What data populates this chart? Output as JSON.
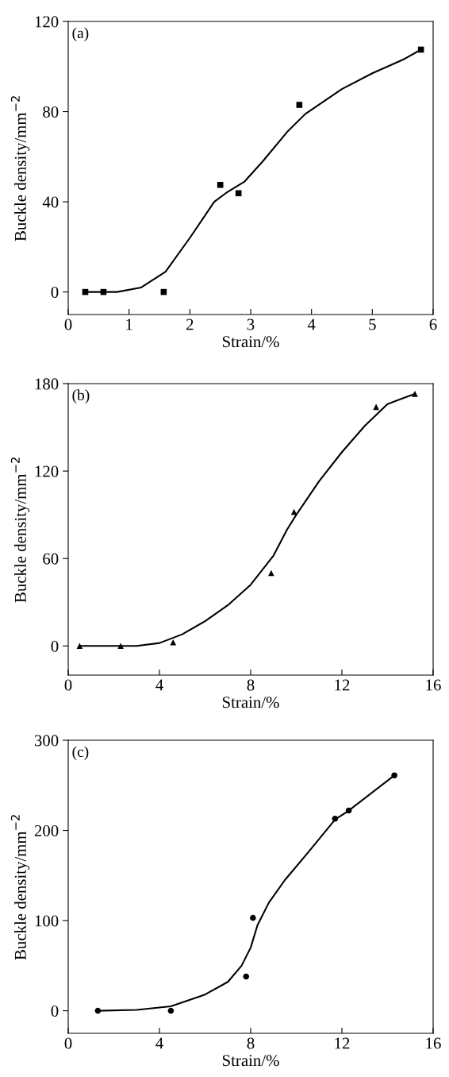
{
  "chart_data": [
    {
      "type": "scatter",
      "xlabel": "Strain/%",
      "ylabel": "Buckle density/mm$^{−2}$",
      "annotations": [
        "(a)"
      ],
      "marker": "square",
      "xlim": [
        0,
        6
      ],
      "ylim": [
        -10,
        120
      ],
      "xticks": [
        0,
        1,
        2,
        3,
        4,
        5,
        6
      ],
      "yticks": [
        0,
        40,
        80,
        120
      ],
      "grid": false,
      "legend": false,
      "series": [
        {
          "color": "#000000",
          "x": [
            0.28,
            0.58,
            1.57,
            2.5,
            2.8,
            3.8,
            5.8
          ],
          "values": [
            0,
            0,
            0,
            47.5,
            43.8,
            83,
            107.5
          ]
        },
        {
          "type": "line",
          "color": "#000000",
          "marker": "none",
          "x": [
            0.3,
            0.8,
            1.2,
            1.6,
            2.0,
            2.4,
            2.6,
            2.9,
            3.2,
            3.6,
            3.9,
            4.5,
            5.0,
            5.5,
            5.8
          ],
          "values": [
            0,
            0,
            2,
            9,
            24,
            40,
            44,
            49,
            58,
            71,
            79,
            90,
            97,
            103,
            107.5
          ]
        }
      ]
    },
    {
      "type": "scatter",
      "xlabel": "Strain/%",
      "ylabel": "Buckle density/mm$^{−2}$",
      "annotations": [
        "(b)"
      ],
      "marker": "triangle",
      "xlim": [
        0,
        16
      ],
      "ylim": [
        -20,
        180
      ],
      "xticks": [
        0,
        4,
        8,
        12,
        16
      ],
      "yticks": [
        0,
        60,
        120,
        180
      ],
      "grid": false,
      "legend": false,
      "series": [
        {
          "color": "#000000",
          "x": [
            0.5,
            2.3,
            4.6,
            8.9,
            9.9,
            13.5,
            15.2
          ],
          "values": [
            0,
            0,
            2.5,
            50,
            92,
            164,
            173
          ]
        },
        {
          "type": "line",
          "color": "#000000",
          "marker": "none",
          "x": [
            0.5,
            3,
            4,
            5,
            6,
            7,
            8,
            9,
            9.6,
            10,
            11,
            12,
            13,
            14,
            15.2
          ],
          "values": [
            0,
            0,
            2,
            8,
            17,
            28,
            42,
            62,
            80,
            90,
            113,
            133,
            151,
            166,
            173
          ]
        }
      ]
    },
    {
      "type": "scatter",
      "xlabel": "Strain/%",
      "ylabel": "Buckle density/mm$^{−2}$",
      "annotations": [
        "(c)"
      ],
      "marker": "circle",
      "xlim": [
        0,
        16
      ],
      "ylim": [
        -25,
        300
      ],
      "xticks": [
        0,
        4,
        8,
        12,
        16
      ],
      "yticks": [
        0,
        100,
        200,
        300
      ],
      "grid": false,
      "legend": false,
      "series": [
        {
          "color": "#000000",
          "x": [
            1.3,
            4.5,
            7.8,
            8.1,
            11.7,
            12.3,
            14.3
          ],
          "values": [
            0,
            0,
            38,
            103,
            213,
            222,
            261
          ]
        },
        {
          "type": "line",
          "color": "#000000",
          "marker": "none",
          "x": [
            1.3,
            3,
            4.5,
            6,
            7,
            7.6,
            8,
            8.3,
            8.8,
            9.5,
            10.5,
            11.7,
            12.3,
            14.3
          ],
          "values": [
            0,
            1,
            5,
            18,
            32,
            50,
            70,
            95,
            120,
            145,
            175,
            212,
            222,
            261
          ]
        }
      ]
    }
  ]
}
